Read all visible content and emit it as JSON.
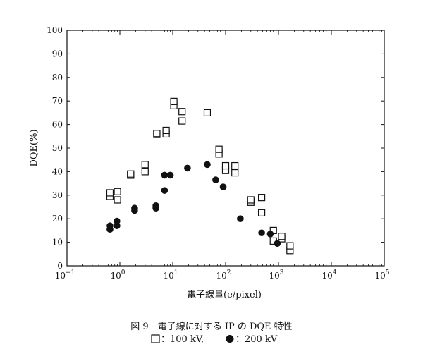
{
  "chart_data": {
    "type": "scatter",
    "title": "",
    "xlabel": "電子線量(e/pixel)",
    "ylabel": "DQE(%)",
    "xscale": "log",
    "xlim": [
      0.1,
      100000
    ],
    "ylim": [
      0,
      100
    ],
    "x_ticks": [
      {
        "base": "10",
        "exp": "−1",
        "value": 0.1
      },
      {
        "base": "10",
        "exp": "0",
        "value": 1
      },
      {
        "base": "10",
        "exp": "1",
        "value": 10
      },
      {
        "base": "10",
        "exp": "2",
        "value": 100
      },
      {
        "base": "10",
        "exp": "3",
        "value": 1000
      },
      {
        "base": "10",
        "exp": "4",
        "value": 10000
      },
      {
        "base": "10",
        "exp": "5",
        "value": 100000
      }
    ],
    "y_ticks": [
      "0",
      "10",
      "20",
      "30",
      "40",
      "50",
      "60",
      "70",
      "80",
      "90",
      "100"
    ],
    "grid": false,
    "series": [
      {
        "name": "100kV",
        "marker": "open-square",
        "points": [
          [
            0.65,
            29.5
          ],
          [
            0.65,
            31
          ],
          [
            0.9,
            28
          ],
          [
            0.9,
            31.5
          ],
          [
            1.6,
            38.5
          ],
          [
            1.6,
            39
          ],
          [
            3.0,
            40
          ],
          [
            3.0,
            43
          ],
          [
            5.0,
            55.8
          ],
          [
            5.0,
            56.2
          ],
          [
            7.5,
            56
          ],
          [
            7.5,
            57.5
          ],
          [
            10.5,
            68
          ],
          [
            10.5,
            69.8
          ],
          [
            15,
            61.5
          ],
          [
            15,
            65.5
          ],
          [
            45,
            65
          ],
          [
            75,
            47.5
          ],
          [
            75,
            49.5
          ],
          [
            100,
            40.5
          ],
          [
            100,
            42.5
          ],
          [
            150,
            39.5
          ],
          [
            150,
            42.5
          ],
          [
            300,
            27
          ],
          [
            300,
            28
          ],
          [
            480,
            22.5
          ],
          [
            480,
            29
          ],
          [
            800,
            10.5
          ],
          [
            800,
            15
          ],
          [
            1150,
            11.5
          ],
          [
            1150,
            12.5
          ],
          [
            1650,
            6.5
          ],
          [
            1650,
            8.5
          ]
        ]
      },
      {
        "name": "200kV",
        "marker": "filled-circle",
        "points": [
          [
            0.65,
            15.5
          ],
          [
            0.65,
            17
          ],
          [
            0.88,
            17
          ],
          [
            0.88,
            19
          ],
          [
            1.9,
            23.5
          ],
          [
            1.9,
            24.5
          ],
          [
            4.8,
            24.5
          ],
          [
            4.8,
            25.5
          ],
          [
            7,
            32
          ],
          [
            7,
            38.5
          ],
          [
            9,
            38.5
          ],
          [
            19,
            41.5
          ],
          [
            45,
            43
          ],
          [
            65,
            36.5
          ],
          [
            90,
            33.5
          ],
          [
            190,
            20
          ],
          [
            480,
            14
          ],
          [
            700,
            13.5
          ],
          [
            950,
            9.5
          ]
        ]
      }
    ]
  },
  "caption": {
    "line1": "図 9　電子線に対する IP の DQE 特性",
    "legend_100": "：100 kV,",
    "legend_200": "：200 kV"
  }
}
